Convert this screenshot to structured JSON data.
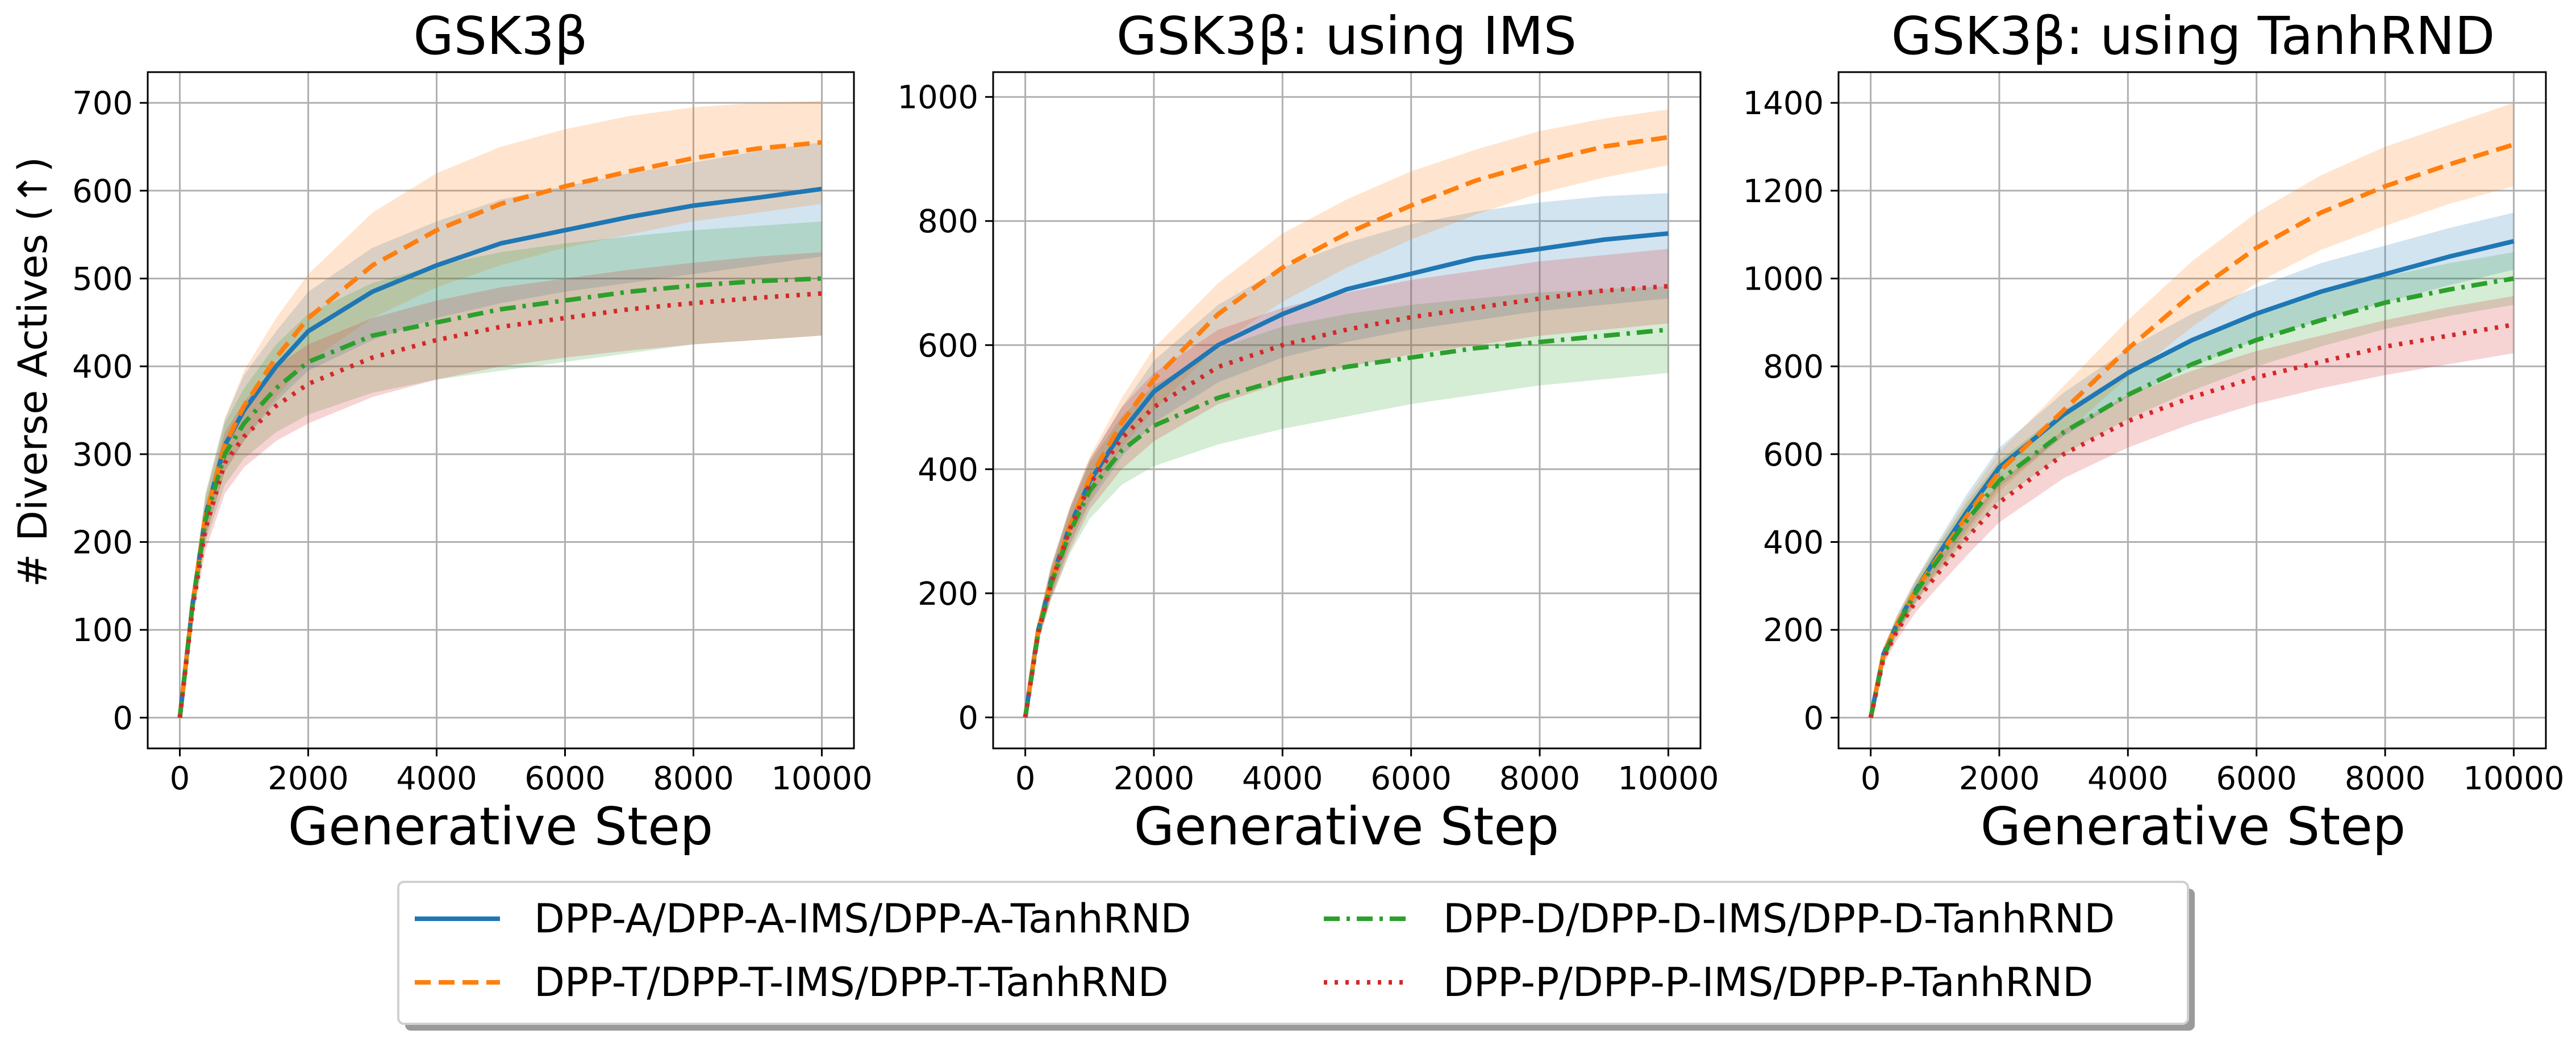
{
  "figure": {
    "ylabel": "# Diverse Actives (↑)",
    "colors": {
      "A": "#1f77b4",
      "T": "#ff7f0e",
      "D": "#2ca02c",
      "P": "#d62728"
    }
  },
  "legend": [
    {
      "key": "A",
      "label": "DPP-A/DPP-A-IMS/DPP-A-TanhRND"
    },
    {
      "key": "D",
      "label": "DPP-D/DPP-D-IMS/DPP-D-TanhRND"
    },
    {
      "key": "T",
      "label": "DPP-T/DPP-T-IMS/DPP-T-TanhRND"
    },
    {
      "key": "P",
      "label": "DPP-P/DPP-P-IMS/DPP-P-TanhRND"
    }
  ],
  "chart_data": [
    {
      "type": "line",
      "title": "GSK3β",
      "xlabel": "Generative Step",
      "ylabel": "# Diverse Actives (↑)",
      "xlim": [
        -500,
        10500
      ],
      "ylim": [
        -35,
        735
      ],
      "xticks": [
        0,
        2000,
        4000,
        6000,
        8000,
        10000
      ],
      "yticks": [
        0,
        100,
        200,
        300,
        400,
        500,
        600,
        700
      ],
      "grid": true,
      "x": [
        0,
        200,
        400,
        700,
        1000,
        1500,
        2000,
        3000,
        4000,
        5000,
        6000,
        7000,
        8000,
        9000,
        10000
      ],
      "series": [
        {
          "key": "A",
          "name": "DPP-A",
          "style": "solid",
          "values": [
            0,
            130,
            230,
            310,
            350,
            400,
            440,
            485,
            515,
            540,
            555,
            570,
            583,
            592,
            602
          ],
          "lower": [
            0,
            115,
            205,
            280,
            315,
            360,
            395,
            430,
            455,
            472,
            485,
            495,
            505,
            515,
            525
          ],
          "upper": [
            0,
            145,
            255,
            340,
            390,
            440,
            485,
            535,
            565,
            590,
            605,
            620,
            632,
            645,
            655
          ]
        },
        {
          "key": "T",
          "name": "DPP-T",
          "style": "dashed",
          "values": [
            0,
            130,
            230,
            310,
            355,
            410,
            455,
            515,
            555,
            585,
            605,
            622,
            637,
            648,
            655
          ],
          "lower": [
            0,
            115,
            205,
            280,
            315,
            365,
            405,
            455,
            490,
            515,
            535,
            550,
            565,
            575,
            585
          ],
          "upper": [
            0,
            145,
            255,
            340,
            395,
            455,
            505,
            575,
            620,
            650,
            670,
            685,
            695,
            700,
            702
          ]
        },
        {
          "key": "D",
          "name": "DPP-D",
          "style": "dashdot",
          "values": [
            0,
            130,
            225,
            300,
            335,
            375,
            405,
            435,
            450,
            465,
            475,
            485,
            492,
            497,
            500
          ],
          "lower": [
            0,
            115,
            200,
            265,
            295,
            325,
            345,
            370,
            385,
            395,
            405,
            415,
            425,
            430,
            435
          ],
          "upper": [
            0,
            145,
            250,
            335,
            375,
            425,
            460,
            495,
            515,
            530,
            540,
            548,
            555,
            560,
            565
          ]
        },
        {
          "key": "P",
          "name": "DPP-P",
          "style": "dotted",
          "values": [
            0,
            125,
            215,
            290,
            320,
            355,
            380,
            410,
            430,
            445,
            455,
            465,
            472,
            478,
            483
          ],
          "lower": [
            0,
            110,
            190,
            255,
            285,
            315,
            335,
            365,
            385,
            400,
            410,
            418,
            425,
            430,
            435
          ],
          "upper": [
            0,
            140,
            240,
            325,
            360,
            400,
            425,
            455,
            475,
            490,
            500,
            510,
            518,
            525,
            530
          ]
        }
      ]
    },
    {
      "type": "line",
      "title": "GSK3β: using IMS",
      "xlabel": "Generative Step",
      "ylabel": "",
      "xlim": [
        -500,
        10500
      ],
      "ylim": [
        -50,
        1040
      ],
      "xticks": [
        0,
        2000,
        4000,
        6000,
        8000,
        10000
      ],
      "yticks": [
        0,
        200,
        400,
        600,
        800,
        1000
      ],
      "grid": true,
      "x": [
        0,
        200,
        400,
        700,
        1000,
        1500,
        2000,
        3000,
        4000,
        5000,
        6000,
        7000,
        8000,
        9000,
        10000
      ],
      "series": [
        {
          "key": "A",
          "name": "DPP-A-IMS",
          "style": "solid",
          "values": [
            0,
            140,
            220,
            310,
            380,
            460,
            525,
            600,
            650,
            690,
            715,
            740,
            755,
            770,
            780
          ],
          "lower": [
            0,
            125,
            195,
            280,
            345,
            420,
            475,
            540,
            580,
            605,
            625,
            640,
            655,
            665,
            675
          ],
          "upper": [
            0,
            155,
            245,
            340,
            415,
            500,
            575,
            665,
            725,
            765,
            795,
            815,
            830,
            840,
            845
          ]
        },
        {
          "key": "T",
          "name": "DPP-T-IMS",
          "style": "dashed",
          "values": [
            0,
            140,
            220,
            310,
            385,
            475,
            545,
            650,
            725,
            780,
            825,
            865,
            895,
            920,
            935
          ],
          "lower": [
            0,
            125,
            195,
            280,
            350,
            435,
            495,
            600,
            670,
            725,
            770,
            810,
            845,
            870,
            890
          ],
          "upper": [
            0,
            155,
            245,
            340,
            420,
            515,
            595,
            700,
            780,
            835,
            880,
            915,
            945,
            965,
            980
          ]
        },
        {
          "key": "D",
          "name": "DPP-D-IMS",
          "style": "dashdot",
          "values": [
            0,
            135,
            215,
            300,
            365,
            430,
            470,
            515,
            545,
            565,
            580,
            595,
            605,
            615,
            625
          ],
          "lower": [
            0,
            120,
            190,
            265,
            320,
            375,
            405,
            440,
            465,
            485,
            505,
            520,
            535,
            545,
            555
          ],
          "upper": [
            0,
            150,
            240,
            335,
            410,
            485,
            535,
            595,
            630,
            650,
            665,
            675,
            685,
            690,
            695
          ]
        },
        {
          "key": "P",
          "name": "DPP-P-IMS",
          "style": "dotted",
          "values": [
            0,
            135,
            215,
            305,
            375,
            450,
            500,
            565,
            600,
            625,
            645,
            660,
            675,
            688,
            695
          ],
          "lower": [
            0,
            120,
            190,
            270,
            335,
            400,
            445,
            505,
            540,
            565,
            585,
            600,
            615,
            625,
            635
          ],
          "upper": [
            0,
            150,
            240,
            340,
            415,
            500,
            555,
            625,
            660,
            685,
            705,
            720,
            735,
            745,
            755
          ]
        }
      ]
    },
    {
      "type": "line",
      "title": "GSK3β: using TanhRND",
      "xlabel": "Generative Step",
      "ylabel": "",
      "xlim": [
        -500,
        10500
      ],
      "ylim": [
        -70,
        1470
      ],
      "xticks": [
        0,
        2000,
        4000,
        6000,
        8000,
        10000
      ],
      "yticks": [
        0,
        200,
        400,
        600,
        800,
        1000,
        1200,
        1400
      ],
      "grid": true,
      "x": [
        0,
        200,
        400,
        700,
        1000,
        1500,
        2000,
        3000,
        4000,
        5000,
        6000,
        7000,
        8000,
        9000,
        10000
      ],
      "series": [
        {
          "key": "A",
          "name": "DPP-A-TanhRND",
          "style": "solid",
          "values": [
            0,
            145,
            210,
            290,
            360,
            470,
            570,
            690,
            785,
            860,
            920,
            970,
            1010,
            1050,
            1085
          ],
          "lower": [
            0,
            130,
            190,
            265,
            330,
            430,
            525,
            640,
            730,
            800,
            860,
            905,
            945,
            985,
            1020
          ],
          "upper": [
            0,
            160,
            230,
            315,
            390,
            510,
            615,
            740,
            840,
            920,
            980,
            1035,
            1075,
            1115,
            1150
          ]
        },
        {
          "key": "T",
          "name": "DPP-T-TanhRND",
          "style": "dashed",
          "values": [
            0,
            145,
            210,
            290,
            355,
            460,
            560,
            700,
            840,
            965,
            1070,
            1150,
            1210,
            1260,
            1305
          ],
          "lower": [
            0,
            130,
            190,
            265,
            325,
            420,
            515,
            645,
            775,
            890,
            990,
            1065,
            1120,
            1170,
            1210
          ],
          "upper": [
            0,
            160,
            230,
            315,
            385,
            500,
            605,
            755,
            905,
            1040,
            1150,
            1235,
            1300,
            1350,
            1400
          ]
        },
        {
          "key": "D",
          "name": "DPP-D-TanhRND",
          "style": "dashdot",
          "values": [
            0,
            140,
            205,
            285,
            350,
            450,
            540,
            650,
            735,
            805,
            860,
            905,
            945,
            975,
            1000
          ],
          "lower": [
            0,
            125,
            185,
            260,
            320,
            410,
            495,
            600,
            680,
            745,
            800,
            845,
            885,
            915,
            940
          ],
          "upper": [
            0,
            155,
            225,
            310,
            380,
            490,
            585,
            700,
            790,
            865,
            920,
            965,
            1005,
            1035,
            1060
          ]
        },
        {
          "key": "P",
          "name": "DPP-P-TanhRND",
          "style": "dotted",
          "values": [
            0,
            135,
            195,
            265,
            320,
            410,
            490,
            600,
            675,
            730,
            775,
            810,
            845,
            870,
            895
          ],
          "lower": [
            0,
            120,
            175,
            240,
            290,
            370,
            445,
            545,
            615,
            670,
            715,
            750,
            780,
            805,
            830
          ],
          "upper": [
            0,
            150,
            215,
            290,
            350,
            450,
            535,
            655,
            735,
            790,
            835,
            870,
            905,
            935,
            960
          ]
        }
      ]
    }
  ]
}
